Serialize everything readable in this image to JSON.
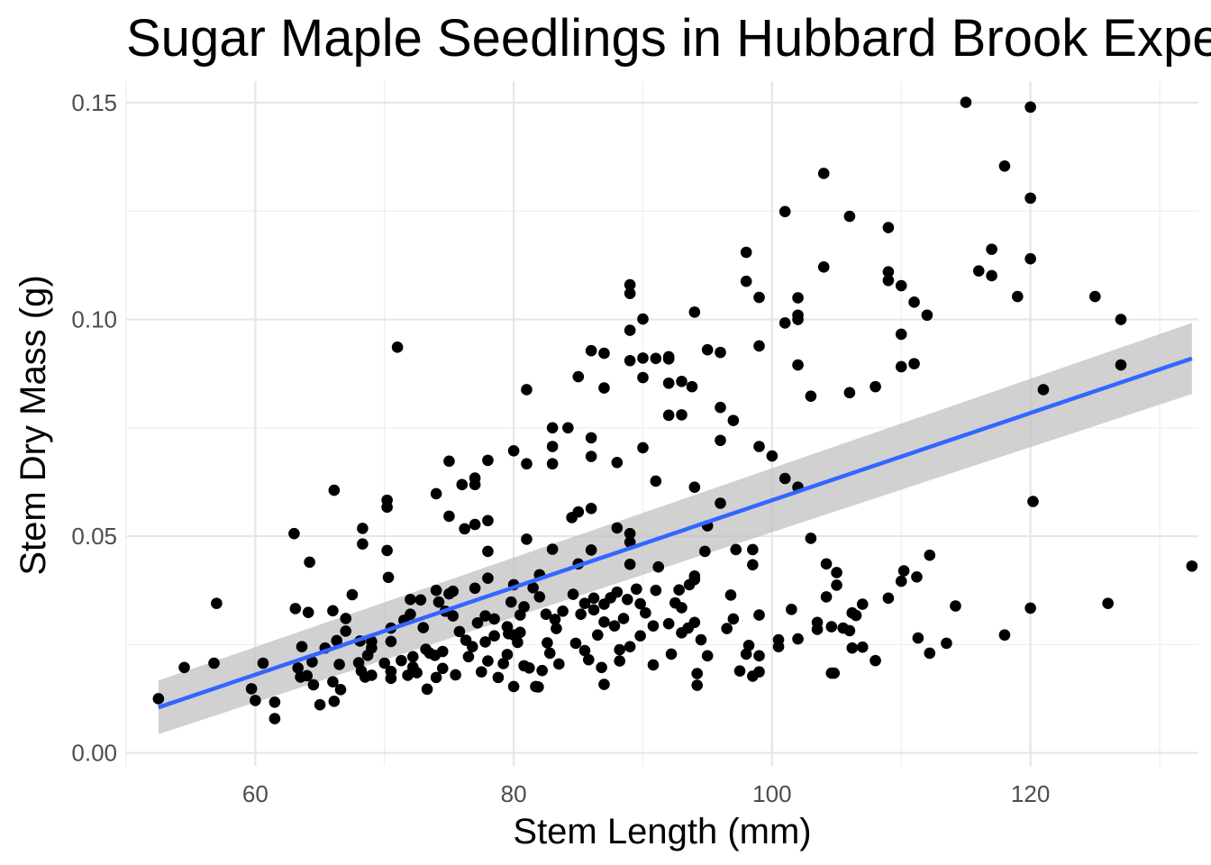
{
  "chart_data": {
    "type": "scatter",
    "title": "Sugar Maple Seedlings in Hubbard Brook Experimental Forest",
    "xlabel": "Stem Length (mm)",
    "ylabel": "Stem Dry Mass (g)",
    "xlim": [
      50,
      133
    ],
    "ylim": [
      -0.003,
      0.155
    ],
    "x_ticks": [
      60,
      80,
      100,
      120
    ],
    "x_tick_labels": [
      "60",
      "80",
      "100",
      "120"
    ],
    "y_ticks": [
      0.0,
      0.05,
      0.1,
      0.15
    ],
    "y_tick_labels": [
      "0.00",
      "0.05",
      "0.10",
      "0.15"
    ],
    "grid": true,
    "legend": "none",
    "colors": {
      "points": "#000000",
      "trend_line": "#3366ff",
      "confidence_band": "#bebebe"
    },
    "trend_line": {
      "method": "linear regression",
      "x": [
        52.5,
        132.5
      ],
      "y": [
        0.0105,
        0.091
      ],
      "ci_lower": [
        0.0043,
        0.0828
      ],
      "ci_upper": [
        0.0167,
        0.0992
      ]
    },
    "points": [
      [
        52.5,
        0.0125
      ],
      [
        54.5,
        0.0197
      ],
      [
        56.8,
        0.0207
      ],
      [
        57.0,
        0.0345
      ],
      [
        59.7,
        0.0148
      ],
      [
        60.0,
        0.0121
      ],
      [
        60.6,
        0.0207
      ],
      [
        61.5,
        0.0117
      ],
      [
        61.5,
        0.0079
      ],
      [
        63.0,
        0.0506
      ],
      [
        63.1,
        0.0333
      ],
      [
        63.3,
        0.0196
      ],
      [
        63.5,
        0.0175
      ],
      [
        63.6,
        0.0245
      ],
      [
        64.0,
        0.0178
      ],
      [
        64.1,
        0.0324
      ],
      [
        64.2,
        0.044
      ],
      [
        64.4,
        0.021
      ],
      [
        64.5,
        0.0157
      ],
      [
        65.0,
        0.0111
      ],
      [
        65.4,
        0.0242
      ],
      [
        66.0,
        0.0164
      ],
      [
        66.0,
        0.0328
      ],
      [
        66.1,
        0.0606
      ],
      [
        66.1,
        0.0119
      ],
      [
        66.3,
        0.0259
      ],
      [
        66.5,
        0.0204
      ],
      [
        66.6,
        0.0146
      ],
      [
        67.0,
        0.031
      ],
      [
        67.0,
        0.0281
      ],
      [
        67.5,
        0.0365
      ],
      [
        68.0,
        0.0208
      ],
      [
        68.1,
        0.0258
      ],
      [
        68.2,
        0.0189
      ],
      [
        68.3,
        0.0518
      ],
      [
        68.3,
        0.0482
      ],
      [
        68.5,
        0.0175
      ],
      [
        68.7,
        0.0225
      ],
      [
        69.0,
        0.0179
      ],
      [
        69.0,
        0.0242
      ],
      [
        69.0,
        0.0257
      ],
      [
        70.0,
        0.0207
      ],
      [
        70.2,
        0.0583
      ],
      [
        70.2,
        0.0567
      ],
      [
        70.2,
        0.0467
      ],
      [
        70.3,
        0.0405
      ],
      [
        70.5,
        0.0288
      ],
      [
        70.5,
        0.0257
      ],
      [
        70.5,
        0.0188
      ],
      [
        70.5,
        0.0172
      ],
      [
        71.0,
        0.0936
      ],
      [
        71.3,
        0.0213
      ],
      [
        71.5,
        0.0306
      ],
      [
        71.8,
        0.0179
      ],
      [
        72.0,
        0.0354
      ],
      [
        72.0,
        0.032
      ],
      [
        72.2,
        0.0198
      ],
      [
        72.2,
        0.0222
      ],
      [
        72.5,
        0.0185
      ],
      [
        72.8,
        0.0353
      ],
      [
        73.0,
        0.0289
      ],
      [
        73.2,
        0.0239
      ],
      [
        73.3,
        0.0147
      ],
      [
        73.5,
        0.023
      ],
      [
        73.9,
        0.0225
      ],
      [
        74.0,
        0.0174
      ],
      [
        74.0,
        0.0598
      ],
      [
        74.0,
        0.0375
      ],
      [
        74.2,
        0.0348
      ],
      [
        74.5,
        0.0234
      ],
      [
        74.5,
        0.0195
      ],
      [
        74.7,
        0.0327
      ],
      [
        75.0,
        0.0546
      ],
      [
        75.0,
        0.0367
      ],
      [
        75.0,
        0.0673
      ],
      [
        75.3,
        0.0373
      ],
      [
        75.3,
        0.0316
      ],
      [
        75.5,
        0.018
      ],
      [
        75.8,
        0.028
      ],
      [
        76.0,
        0.0619
      ],
      [
        76.2,
        0.0517
      ],
      [
        76.3,
        0.026
      ],
      [
        76.5,
        0.0222
      ],
      [
        76.8,
        0.0245
      ],
      [
        77.0,
        0.0619
      ],
      [
        77.0,
        0.0634
      ],
      [
        77.0,
        0.0527
      ],
      [
        77.0,
        0.038
      ],
      [
        77.2,
        0.03
      ],
      [
        77.5,
        0.0187
      ],
      [
        77.8,
        0.0256
      ],
      [
        77.8,
        0.0316
      ],
      [
        78.0,
        0.0675
      ],
      [
        78.0,
        0.0536
      ],
      [
        78.0,
        0.0465
      ],
      [
        78.0,
        0.0403
      ],
      [
        78.0,
        0.0212
      ],
      [
        78.5,
        0.027
      ],
      [
        78.5,
        0.0309
      ],
      [
        78.8,
        0.0174
      ],
      [
        79.2,
        0.0206
      ],
      [
        79.5,
        0.0291
      ],
      [
        79.5,
        0.0227
      ],
      [
        79.6,
        0.0275
      ],
      [
        79.8,
        0.0348
      ],
      [
        80.0,
        0.0697
      ],
      [
        80.0,
        0.0388
      ],
      [
        80.0,
        0.0272
      ],
      [
        80.0,
        0.0153
      ],
      [
        80.3,
        0.0255
      ],
      [
        80.5,
        0.0278
      ],
      [
        80.5,
        0.0318
      ],
      [
        80.8,
        0.0337
      ],
      [
        80.8,
        0.0201
      ],
      [
        81.0,
        0.0838
      ],
      [
        81.0,
        0.0667
      ],
      [
        81.0,
        0.0493
      ],
      [
        81.2,
        0.0196
      ],
      [
        81.5,
        0.0381
      ],
      [
        81.7,
        0.0153
      ],
      [
        81.9,
        0.0152
      ],
      [
        82.0,
        0.0411
      ],
      [
        82.0,
        0.036
      ],
      [
        82.2,
        0.019
      ],
      [
        82.5,
        0.032
      ],
      [
        82.6,
        0.0254
      ],
      [
        82.8,
        0.023
      ],
      [
        83.0,
        0.075
      ],
      [
        83.0,
        0.0707
      ],
      [
        83.0,
        0.0667
      ],
      [
        83.0,
        0.047
      ],
      [
        83.2,
        0.0308
      ],
      [
        83.3,
        0.0287
      ],
      [
        83.5,
        0.0205
      ],
      [
        83.8,
        0.0327
      ],
      [
        84.2,
        0.075
      ],
      [
        84.5,
        0.0543
      ],
      [
        84.6,
        0.0366
      ],
      [
        84.8,
        0.0253
      ],
      [
        85.0,
        0.0868
      ],
      [
        85.0,
        0.0556
      ],
      [
        85.0,
        0.0436
      ],
      [
        85.2,
        0.032
      ],
      [
        85.5,
        0.0236
      ],
      [
        85.5,
        0.0345
      ],
      [
        85.8,
        0.0215
      ],
      [
        86.0,
        0.0928
      ],
      [
        86.0,
        0.0727
      ],
      [
        86.0,
        0.0684
      ],
      [
        86.0,
        0.0564
      ],
      [
        86.0,
        0.0468
      ],
      [
        86.2,
        0.0357
      ],
      [
        86.2,
        0.033
      ],
      [
        86.5,
        0.0272
      ],
      [
        86.8,
        0.0197
      ],
      [
        87.0,
        0.0922
      ],
      [
        87.0,
        0.0842
      ],
      [
        87.0,
        0.0343
      ],
      [
        87.0,
        0.0302
      ],
      [
        87.0,
        0.0158
      ],
      [
        87.5,
        0.0358
      ],
      [
        87.8,
        0.0293
      ],
      [
        88.0,
        0.067
      ],
      [
        88.0,
        0.0519
      ],
      [
        88.0,
        0.0371
      ],
      [
        88.2,
        0.0238
      ],
      [
        88.2,
        0.0212
      ],
      [
        88.5,
        0.031
      ],
      [
        88.8,
        0.0354
      ],
      [
        89.0,
        0.108
      ],
      [
        89.0,
        0.106
      ],
      [
        89.0,
        0.0975
      ],
      [
        89.0,
        0.0905
      ],
      [
        89.0,
        0.0506
      ],
      [
        89.0,
        0.0486
      ],
      [
        89.0,
        0.0435
      ],
      [
        89.0,
        0.0245
      ],
      [
        89.5,
        0.0378
      ],
      [
        89.8,
        0.0344
      ],
      [
        89.8,
        0.027
      ],
      [
        90.0,
        0.1001
      ],
      [
        90.0,
        0.0911
      ],
      [
        90.0,
        0.0866
      ],
      [
        90.0,
        0.0704
      ],
      [
        90.2,
        0.0323
      ],
      [
        90.8,
        0.0293
      ],
      [
        90.8,
        0.0203
      ],
      [
        91.0,
        0.091
      ],
      [
        91.0,
        0.0627
      ],
      [
        91.0,
        0.0375
      ],
      [
        91.2,
        0.0429
      ],
      [
        92.0,
        0.0914
      ],
      [
        92.0,
        0.0909
      ],
      [
        92.0,
        0.0853
      ],
      [
        92.0,
        0.0779
      ],
      [
        92.0,
        0.0298
      ],
      [
        92.2,
        0.0228
      ],
      [
        92.5,
        0.0346
      ],
      [
        92.8,
        0.0376
      ],
      [
        93.0,
        0.0857
      ],
      [
        93.0,
        0.078
      ],
      [
        93.0,
        0.0335
      ],
      [
        93.0,
        0.0277
      ],
      [
        93.5,
        0.0288
      ],
      [
        93.6,
        0.0388
      ],
      [
        93.8,
        0.0845
      ],
      [
        94.0,
        0.1017
      ],
      [
        94.0,
        0.0613
      ],
      [
        94.0,
        0.04
      ],
      [
        94.0,
        0.0408
      ],
      [
        94.0,
        0.0301
      ],
      [
        94.2,
        0.0183
      ],
      [
        94.2,
        0.0156
      ],
      [
        94.5,
        0.0261
      ],
      [
        94.8,
        0.0465
      ],
      [
        95.0,
        0.093
      ],
      [
        95.0,
        0.0524
      ],
      [
        95.0,
        0.0224
      ],
      [
        96.0,
        0.0924
      ],
      [
        96.0,
        0.0797
      ],
      [
        96.0,
        0.0721
      ],
      [
        96.0,
        0.0576
      ],
      [
        96.5,
        0.0287
      ],
      [
        96.8,
        0.0364
      ],
      [
        97.0,
        0.0767
      ],
      [
        97.0,
        0.0309
      ],
      [
        97.2,
        0.0469
      ],
      [
        97.5,
        0.0189
      ],
      [
        98.0,
        0.1155
      ],
      [
        98.0,
        0.1088
      ],
      [
        98.0,
        0.0228
      ],
      [
        98.2,
        0.0248
      ],
      [
        98.5,
        0.0469
      ],
      [
        98.5,
        0.0434
      ],
      [
        98.5,
        0.0177
      ],
      [
        99.0,
        0.1051
      ],
      [
        99.0,
        0.0939
      ],
      [
        99.0,
        0.0707
      ],
      [
        99.0,
        0.0318
      ],
      [
        99.0,
        0.0224
      ],
      [
        99.0,
        0.0187
      ],
      [
        100.0,
        0.0685
      ],
      [
        100.5,
        0.0261
      ],
      [
        100.5,
        0.0245
      ],
      [
        101.0,
        0.1249
      ],
      [
        101.0,
        0.0992
      ],
      [
        101.0,
        0.0633
      ],
      [
        101.5,
        0.0331
      ],
      [
        102.0,
        0.105
      ],
      [
        102.0,
        0.101
      ],
      [
        102.0,
        0.1
      ],
      [
        102.0,
        0.0895
      ],
      [
        102.0,
        0.0613
      ],
      [
        102.0,
        0.0263
      ],
      [
        103.0,
        0.0823
      ],
      [
        103.0,
        0.0495
      ],
      [
        103.5,
        0.0285
      ],
      [
        103.5,
        0.0301
      ],
      [
        104.0,
        0.1337
      ],
      [
        104.0,
        0.1121
      ],
      [
        104.2,
        0.0436
      ],
      [
        104.2,
        0.036
      ],
      [
        104.6,
        0.0184
      ],
      [
        104.6,
        0.0291
      ],
      [
        104.8,
        0.0184
      ],
      [
        105.0,
        0.0387
      ],
      [
        105.0,
        0.0416
      ],
      [
        105.5,
        0.0288
      ],
      [
        106.0,
        0.1238
      ],
      [
        106.0,
        0.0831
      ],
      [
        106.0,
        0.0282
      ],
      [
        106.2,
        0.0323
      ],
      [
        106.2,
        0.0242
      ],
      [
        106.5,
        0.0317
      ],
      [
        107.0,
        0.0244
      ],
      [
        107.0,
        0.0343
      ],
      [
        108.0,
        0.0845
      ],
      [
        108.0,
        0.0213
      ],
      [
        109.0,
        0.1212
      ],
      [
        109.0,
        0.111
      ],
      [
        109.0,
        0.109
      ],
      [
        109.0,
        0.0357
      ],
      [
        110.0,
        0.1078
      ],
      [
        110.0,
        0.0966
      ],
      [
        110.0,
        0.0891
      ],
      [
        110.0,
        0.0396
      ],
      [
        110.2,
        0.042
      ],
      [
        111.0,
        0.104
      ],
      [
        111.0,
        0.0898
      ],
      [
        111.2,
        0.0406
      ],
      [
        111.3,
        0.0265
      ],
      [
        112.0,
        0.101
      ],
      [
        112.2,
        0.0456
      ],
      [
        112.2,
        0.023
      ],
      [
        113.5,
        0.0253
      ],
      [
        114.2,
        0.0339
      ],
      [
        115.0,
        0.1501
      ],
      [
        116.0,
        0.1112
      ],
      [
        117.0,
        0.1162
      ],
      [
        117.0,
        0.1101
      ],
      [
        118.0,
        0.1354
      ],
      [
        118.0,
        0.0272
      ],
      [
        119.0,
        0.1053
      ],
      [
        120.0,
        0.149
      ],
      [
        120.0,
        0.128
      ],
      [
        120.0,
        0.114
      ],
      [
        120.0,
        0.0334
      ],
      [
        120.2,
        0.058
      ],
      [
        121.0,
        0.0838
      ],
      [
        125.0,
        0.1053
      ],
      [
        126.0,
        0.0345
      ],
      [
        127.0,
        0.1
      ],
      [
        127.0,
        0.0895
      ],
      [
        132.5,
        0.0431
      ]
    ]
  }
}
